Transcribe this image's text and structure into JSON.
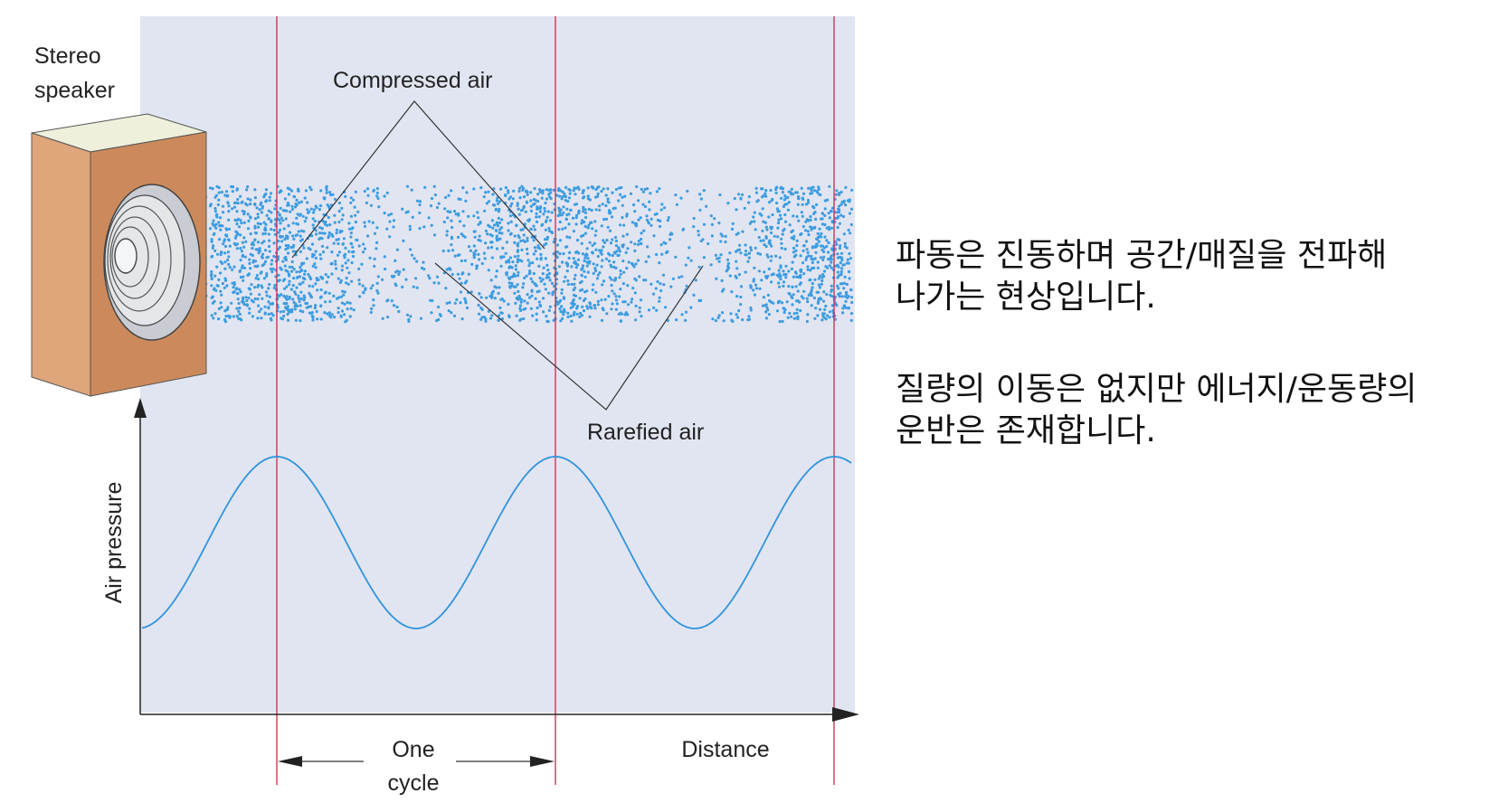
{
  "diagram": {
    "speaker_label": [
      "Stereo",
      "speaker"
    ],
    "compressed_label": "Compressed air",
    "rarefied_label": "Rarefied air",
    "y_axis_label": "Air pressure",
    "x_axis_label": "Distance",
    "cycle_label": [
      "One",
      "cycle"
    ],
    "colors": {
      "background": "#e1e5f1",
      "particles": "#3d9ce0",
      "wave": "#2f93dc",
      "cycle_lines": "#d62347",
      "axis": "#222222",
      "speaker_front": "#cc8a5c",
      "speaker_side": "#dfa57b",
      "speaker_top": "#eef0dc"
    }
  },
  "explanation": {
    "paragraph1": [
      "파동은 진동하며 공간/매질을 전파해",
      "나가는 현상입니다."
    ],
    "paragraph2": [
      "질량의 이동은 없지만 에너지/운동량의",
      "운반은 존재합니다."
    ]
  }
}
